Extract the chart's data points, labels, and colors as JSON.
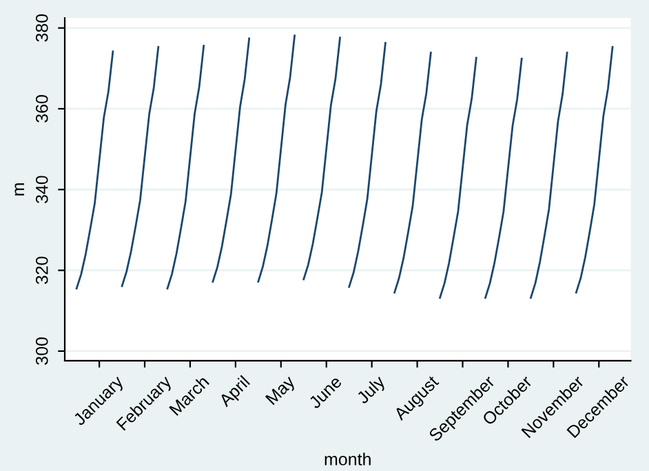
{
  "chart_data": {
    "type": "line",
    "xlabel": "month",
    "ylabel": "m",
    "categories": [
      null,
      null,
      null,
      null,
      null,
      "January",
      null,
      null,
      null,
      null,
      null,
      null,
      null,
      null,
      null,
      "February",
      null,
      null,
      null,
      null,
      null,
      null,
      null,
      null,
      null,
      "March",
      null,
      null,
      null,
      null,
      null,
      null,
      null,
      null,
      null,
      "April",
      null,
      null,
      null,
      null,
      null,
      null,
      null,
      null,
      null,
      "May",
      null,
      null,
      null,
      null,
      null,
      null,
      null,
      null,
      null,
      "June",
      null,
      null,
      null,
      null,
      null,
      null,
      null,
      null,
      null,
      "July",
      null,
      null,
      null,
      null,
      null,
      null,
      null,
      null,
      null,
      "August",
      null,
      null,
      null,
      null,
      null,
      null,
      null,
      null,
      null,
      "September",
      null,
      null,
      null,
      null,
      null,
      null,
      null,
      null,
      null,
      "October",
      null,
      null,
      null,
      null,
      null,
      null,
      null,
      null,
      null,
      "November",
      null,
      null,
      null,
      null,
      null,
      null,
      null,
      null,
      null,
      "December",
      null,
      null,
      null,
      null
    ],
    "ylim": [
      297.6,
      382.5
    ],
    "yticks": [
      300,
      320,
      340,
      360,
      380
    ],
    "grid": "y",
    "legend": false,
    "marker": "none",
    "line_style": "solid",
    "series": [
      {
        "color": "#1a476f",
        "values": [
          315.5,
          319.0,
          324.0,
          330.2,
          336.6,
          347.2,
          357.8,
          364.2,
          374.2,
          null,
          316.1,
          319.7,
          324.7,
          330.9,
          337.4,
          348.1,
          358.7,
          365.2,
          375.3,
          null,
          315.5,
          319.1,
          324.2,
          330.5,
          337.1,
          348.0,
          358.8,
          365.4,
          375.6,
          null,
          317.2,
          320.8,
          325.9,
          332.3,
          338.9,
          349.7,
          360.5,
          367.2,
          377.4,
          null,
          317.2,
          320.9,
          326.0,
          332.4,
          339.1,
          350.1,
          361.0,
          367.7,
          378.1,
          null,
          317.8,
          321.4,
          326.5,
          332.8,
          339.3,
          350.1,
          360.9,
          367.4,
          377.6,
          null,
          315.9,
          319.5,
          324.7,
          331.0,
          337.6,
          348.5,
          359.4,
          366.0,
          376.3,
          null,
          314.5,
          318.1,
          323.1,
          329.4,
          335.9,
          346.6,
          357.3,
          363.8,
          373.9,
          null,
          313.2,
          316.8,
          321.8,
          328.1,
          334.6,
          345.3,
          356.0,
          362.5,
          372.6,
          null,
          313.2,
          316.8,
          321.8,
          328.0,
          334.5,
          345.2,
          355.8,
          362.3,
          372.4,
          null,
          313.2,
          316.8,
          322.0,
          328.4,
          335.1,
          346.0,
          356.9,
          363.6,
          373.9,
          null,
          314.5,
          318.1,
          323.3,
          329.7,
          336.4,
          347.3,
          358.3,
          365.0,
          375.3,
          null
        ]
      }
    ]
  }
}
